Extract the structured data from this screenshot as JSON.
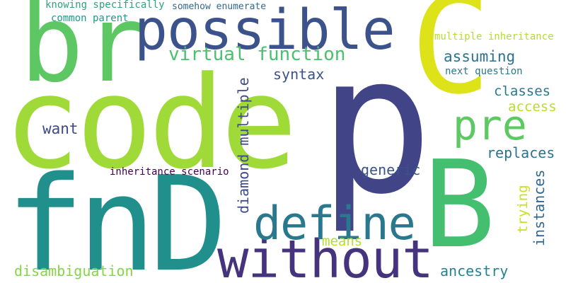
{
  "words": [
    {
      "text": "p",
      "color": "#414487"
    },
    {
      "text": "code",
      "color": "#a0da39"
    },
    {
      "text": "fnD",
      "color": "#21908d"
    },
    {
      "text": "br",
      "color": "#5dc863"
    },
    {
      "text": "C",
      "color": "#dde318"
    },
    {
      "text": "B",
      "color": "#44bf70"
    },
    {
      "text": "possible",
      "color": "#3b528b"
    },
    {
      "text": "without",
      "color": "#46337e"
    },
    {
      "text": "define",
      "color": "#2a788e"
    },
    {
      "text": "pre",
      "color": "#5ec962"
    },
    {
      "text": "virtual function",
      "color": "#4ac16d"
    },
    {
      "text": "diamond multiple",
      "color": "#3e4a89"
    },
    {
      "text": "assuming",
      "color": "#2c728e"
    },
    {
      "text": "syntax",
      "color": "#3b528b"
    },
    {
      "text": "classes",
      "color": "#2a788e"
    },
    {
      "text": "access",
      "color": "#b8de29"
    },
    {
      "text": "want",
      "color": "#3e4989"
    },
    {
      "text": "replaces",
      "color": "#2c728e"
    },
    {
      "text": "generic",
      "color": "#3b528b"
    },
    {
      "text": "instances",
      "color": "#31688e"
    },
    {
      "text": "trying",
      "color": "#c8e020"
    },
    {
      "text": "inheritance scenario",
      "color": "#440154"
    },
    {
      "text": "means",
      "color": "#b5de2b"
    },
    {
      "text": "disambiguation",
      "color": "#86d549"
    },
    {
      "text": "ancestry",
      "color": "#26828e"
    },
    {
      "text": "knowing specifically",
      "color": "#2ea37c"
    },
    {
      "text": "somehow enumerate",
      "color": "#31688e"
    },
    {
      "text": "common parent",
      "color": "#1f9a8a"
    },
    {
      "text": "multiple inheritance",
      "color": "#b5de2b"
    },
    {
      "text": "next question",
      "color": "#2a788e"
    }
  ]
}
